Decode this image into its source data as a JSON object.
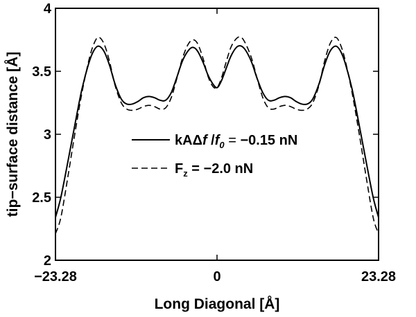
{
  "chart_data": {
    "type": "line",
    "xlabel": "Long Diagonal [Å]",
    "ylabel": "tip−surface distance [Å]",
    "xlim": [
      -23.28,
      23.28
    ],
    "ylim": [
      2,
      4
    ],
    "x_ticks": [
      {
        "value": -23.28,
        "label": "−23.28"
      },
      {
        "value": 0,
        "label": "0"
      },
      {
        "value": 23.28,
        "label": "23.28"
      }
    ],
    "y_ticks": [
      {
        "value": 2,
        "label": "2"
      },
      {
        "value": 2.5,
        "label": "2.5"
      },
      {
        "value": 3,
        "label": "3"
      },
      {
        "value": 3.5,
        "label": "3.5"
      },
      {
        "value": 4,
        "label": "4"
      }
    ],
    "legend_position": "center-right",
    "series": [
      {
        "name": "kAΔf/f0 = −0.15 nN",
        "style": "solid",
        "color": "#000000",
        "points": [
          [
            -23.28,
            2.34
          ],
          [
            -22.5,
            2.5
          ],
          [
            -21.5,
            2.78
          ],
          [
            -20.5,
            3.07
          ],
          [
            -19.5,
            3.35
          ],
          [
            -18.5,
            3.56
          ],
          [
            -17.8,
            3.66
          ],
          [
            -17.1,
            3.7
          ],
          [
            -16.3,
            3.66
          ],
          [
            -15.5,
            3.55
          ],
          [
            -14.7,
            3.4
          ],
          [
            -13.8,
            3.28
          ],
          [
            -13.0,
            3.24
          ],
          [
            -12.2,
            3.24
          ],
          [
            -11.4,
            3.26
          ],
          [
            -10.6,
            3.29
          ],
          [
            -9.8,
            3.3
          ],
          [
            -9.0,
            3.29
          ],
          [
            -8.2,
            3.27
          ],
          [
            -7.4,
            3.27
          ],
          [
            -6.6,
            3.33
          ],
          [
            -5.8,
            3.45
          ],
          [
            -5.0,
            3.58
          ],
          [
            -4.2,
            3.66
          ],
          [
            -3.5,
            3.69
          ],
          [
            -2.8,
            3.66
          ],
          [
            -2.0,
            3.57
          ],
          [
            -1.3,
            3.47
          ],
          [
            -0.6,
            3.4
          ],
          [
            0,
            3.37
          ],
          [
            0.6,
            3.42
          ],
          [
            1.3,
            3.52
          ],
          [
            2.0,
            3.62
          ],
          [
            2.8,
            3.69
          ],
          [
            3.5,
            3.7
          ],
          [
            4.2,
            3.66
          ],
          [
            5.0,
            3.57
          ],
          [
            5.8,
            3.44
          ],
          [
            6.6,
            3.33
          ],
          [
            7.4,
            3.27
          ],
          [
            8.2,
            3.27
          ],
          [
            9.0,
            3.29
          ],
          [
            9.8,
            3.3
          ],
          [
            10.6,
            3.29
          ],
          [
            11.4,
            3.26
          ],
          [
            12.2,
            3.24
          ],
          [
            13.0,
            3.24
          ],
          [
            13.8,
            3.28
          ],
          [
            14.7,
            3.4
          ],
          [
            15.5,
            3.55
          ],
          [
            16.3,
            3.66
          ],
          [
            17.1,
            3.7
          ],
          [
            17.8,
            3.66
          ],
          [
            18.5,
            3.56
          ],
          [
            19.5,
            3.35
          ],
          [
            20.5,
            3.07
          ],
          [
            21.5,
            2.78
          ],
          [
            22.5,
            2.5
          ],
          [
            23.28,
            2.34
          ]
        ]
      },
      {
        "name": "Fz = −2.0 nN",
        "style": "dashed",
        "color": "#000000",
        "points": [
          [
            -23.28,
            2.21
          ],
          [
            -22.5,
            2.34
          ],
          [
            -21.5,
            2.66
          ],
          [
            -20.5,
            3.0
          ],
          [
            -19.5,
            3.32
          ],
          [
            -18.5,
            3.58
          ],
          [
            -17.8,
            3.71
          ],
          [
            -17.1,
            3.77
          ],
          [
            -16.3,
            3.72
          ],
          [
            -15.5,
            3.58
          ],
          [
            -14.7,
            3.39
          ],
          [
            -13.8,
            3.25
          ],
          [
            -13.0,
            3.2
          ],
          [
            -12.2,
            3.19
          ],
          [
            -11.4,
            3.2
          ],
          [
            -10.6,
            3.22
          ],
          [
            -9.8,
            3.23
          ],
          [
            -9.0,
            3.22
          ],
          [
            -8.2,
            3.2
          ],
          [
            -7.4,
            3.21
          ],
          [
            -6.6,
            3.29
          ],
          [
            -5.8,
            3.44
          ],
          [
            -5.0,
            3.6
          ],
          [
            -4.2,
            3.71
          ],
          [
            -3.5,
            3.75
          ],
          [
            -2.8,
            3.72
          ],
          [
            -2.0,
            3.6
          ],
          [
            -1.3,
            3.46
          ],
          [
            -0.6,
            3.38
          ],
          [
            0,
            3.37
          ],
          [
            0.6,
            3.44
          ],
          [
            1.3,
            3.57
          ],
          [
            2.0,
            3.69
          ],
          [
            2.8,
            3.76
          ],
          [
            3.5,
            3.77
          ],
          [
            4.2,
            3.71
          ],
          [
            5.0,
            3.6
          ],
          [
            5.8,
            3.44
          ],
          [
            6.6,
            3.29
          ],
          [
            7.4,
            3.21
          ],
          [
            8.2,
            3.2
          ],
          [
            9.0,
            3.22
          ],
          [
            9.8,
            3.23
          ],
          [
            10.6,
            3.22
          ],
          [
            11.4,
            3.2
          ],
          [
            12.2,
            3.19
          ],
          [
            13.0,
            3.2
          ],
          [
            13.8,
            3.25
          ],
          [
            14.7,
            3.39
          ],
          [
            15.5,
            3.58
          ],
          [
            16.3,
            3.72
          ],
          [
            17.1,
            3.77
          ],
          [
            17.8,
            3.71
          ],
          [
            18.5,
            3.58
          ],
          [
            19.5,
            3.32
          ],
          [
            20.5,
            3.0
          ],
          [
            21.5,
            2.66
          ],
          [
            22.5,
            2.34
          ],
          [
            23.28,
            2.21
          ]
        ]
      }
    ]
  }
}
